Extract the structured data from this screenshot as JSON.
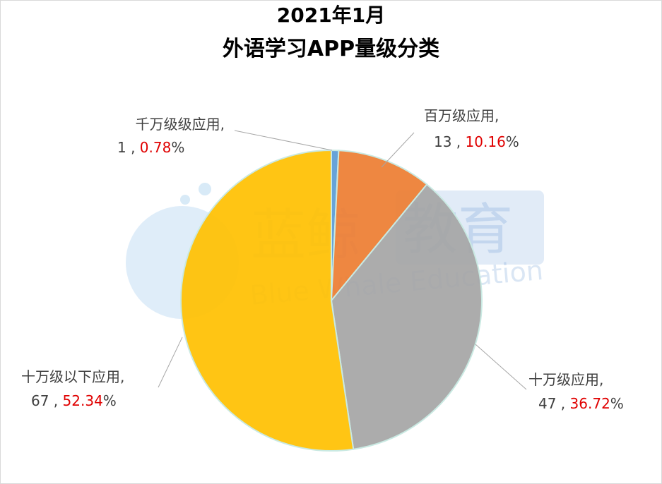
{
  "chart_data": {
    "type": "pie",
    "title_line1": "2021年1月",
    "title_line2": "外语学习APP量级分类",
    "slices": [
      {
        "name": "千万级级应用",
        "count": "1",
        "percent_value": "0.78",
        "percent_sign": "%",
        "value": 0.78,
        "color": "#5b9bd5"
      },
      {
        "name": "百万级应用",
        "count": "13",
        "percent_value": "10.16",
        "percent_sign": "%",
        "value": 10.16,
        "color": "#ed7d31"
      },
      {
        "name": "十万级应用",
        "count": "47",
        "percent_value": "36.72",
        "percent_sign": "%",
        "value": 36.72,
        "color": "#a5a5a5"
      },
      {
        "name": "十万级以下应用",
        "count": "67",
        "percent_value": "52.34",
        "percent_sign": "%",
        "value": 52.34,
        "color": "#ffc000"
      }
    ],
    "label_separator": ",",
    "watermark": {
      "cn_1": "蓝鲸",
      "cn_2": "教育",
      "en": "Blue Whale Education"
    }
  }
}
